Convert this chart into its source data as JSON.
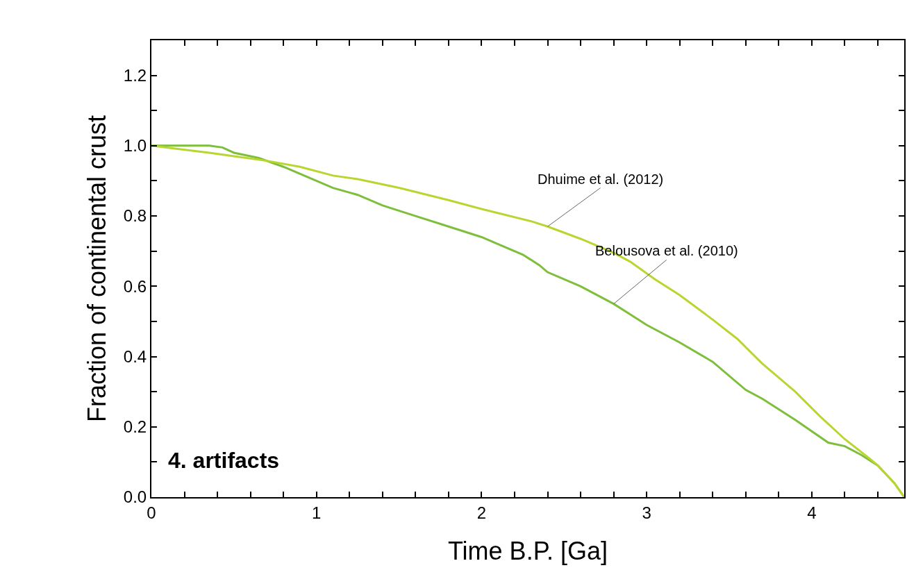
{
  "chart_data": {
    "type": "line",
    "xlabel": "Time B.P. [Ga]",
    "ylabel": "Fraction of continental crust",
    "xlim": [
      0,
      4.56
    ],
    "ylim": [
      0,
      1.3
    ],
    "xticks": [
      0,
      {
        "value": 0.2,
        "label": null
      },
      {
        "value": 0.4,
        "label": null
      },
      {
        "value": 0.6,
        "label": null
      },
      {
        "value": 0.8,
        "label": null
      },
      1,
      {
        "value": 1.2,
        "label": null
      },
      {
        "value": 1.4,
        "label": null
      },
      {
        "value": 1.6,
        "label": null
      },
      {
        "value": 1.8,
        "label": null
      },
      2,
      {
        "value": 2.2,
        "label": null
      },
      {
        "value": 2.4,
        "label": null
      },
      {
        "value": 2.6,
        "label": null
      },
      {
        "value": 2.8,
        "label": null
      },
      3,
      {
        "value": 3.2,
        "label": null
      },
      {
        "value": 3.4,
        "label": null
      },
      {
        "value": 3.6,
        "label": null
      },
      {
        "value": 3.8,
        "label": null
      },
      4,
      {
        "value": 4.2,
        "label": null
      },
      {
        "value": 4.4,
        "label": null
      }
    ],
    "yticks": [
      {
        "value": 0,
        "label": "0.0"
      },
      {
        "value": 0.1,
        "label": null
      },
      0.2,
      {
        "value": 0.3,
        "label": null
      },
      0.4,
      {
        "value": 0.5,
        "label": null
      },
      0.6,
      {
        "value": 0.7,
        "label": null
      },
      0.8,
      {
        "value": 0.9,
        "label": null
      },
      {
        "value": 1,
        "label": "1.0"
      },
      {
        "value": 1.1,
        "label": null
      },
      1.2
    ],
    "marker": "none",
    "line_style": "solid",
    "series": [
      {
        "color": "#7dbf3a",
        "x": [
          0,
          0.35,
          0.43,
          0.5,
          0.65,
          0.8,
          0.95,
          1.1,
          1.25,
          1.4,
          1.6,
          1.8,
          2.0,
          2.1,
          2.25,
          2.35,
          2.4,
          2.6,
          2.8,
          2.9,
          3.0,
          3.2,
          3.4,
          3.6,
          3.7,
          3.9,
          4.1,
          4.2,
          4.3,
          4.4,
          4.5,
          4.56
        ],
        "values": [
          1.0,
          1.0,
          0.995,
          0.98,
          0.965,
          0.94,
          0.91,
          0.88,
          0.86,
          0.83,
          0.8,
          0.77,
          0.74,
          0.72,
          0.69,
          0.66,
          0.64,
          0.6,
          0.55,
          0.52,
          0.49,
          0.44,
          0.385,
          0.305,
          0.28,
          0.22,
          0.155,
          0.145,
          0.12,
          0.09,
          0.04,
          0.0
        ]
      },
      {
        "color": "#b9d630",
        "x": [
          0,
          0.35,
          0.5,
          0.7,
          0.9,
          1.1,
          1.25,
          1.5,
          1.8,
          2.0,
          2.3,
          2.4,
          2.6,
          2.8,
          2.9,
          3.05,
          3.2,
          3.4,
          3.55,
          3.7,
          3.9,
          4.05,
          4.2,
          4.35,
          4.4,
          4.5,
          4.56
        ],
        "values": [
          1.0,
          0.98,
          0.97,
          0.957,
          0.94,
          0.915,
          0.905,
          0.88,
          0.845,
          0.82,
          0.785,
          0.77,
          0.735,
          0.695,
          0.67,
          0.62,
          0.575,
          0.505,
          0.45,
          0.38,
          0.3,
          0.23,
          0.165,
          0.11,
          0.09,
          0.04,
          0.0
        ]
      }
    ],
    "annotations": [
      {
        "text": "Dhuime et al. (2012)",
        "x": 2.4,
        "y": 0.77
      },
      {
        "text": "Belousova et al. (2010)",
        "x": 2.8,
        "y": 0.55
      },
      "4. artifacts"
    ]
  }
}
